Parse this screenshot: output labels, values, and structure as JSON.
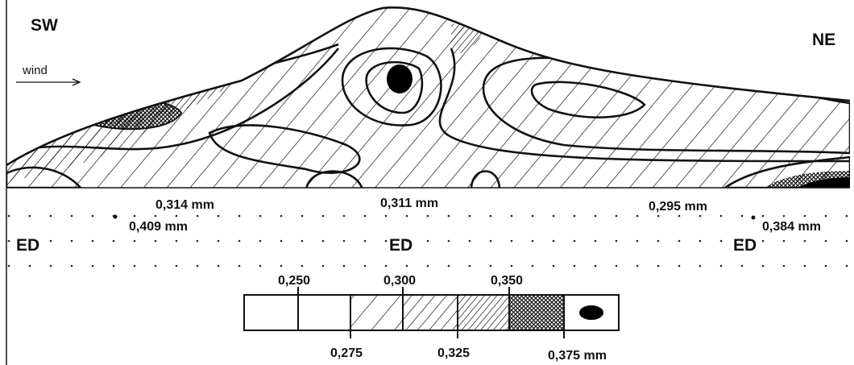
{
  "labels": {
    "left": "SW",
    "right": "NE",
    "wind": "wind"
  },
  "measurements": [
    "0,314 mm",
    "0,409 mm",
    "0,311 mm",
    "0,295 mm",
    "0,384 mm"
  ],
  "zones": [
    "ED",
    "ED",
    "ED"
  ],
  "legend": {
    "top": [
      "0,250",
      "0,300",
      "0,350"
    ],
    "bottom": [
      "0,275",
      "0,325",
      "0,375 mm"
    ]
  }
}
